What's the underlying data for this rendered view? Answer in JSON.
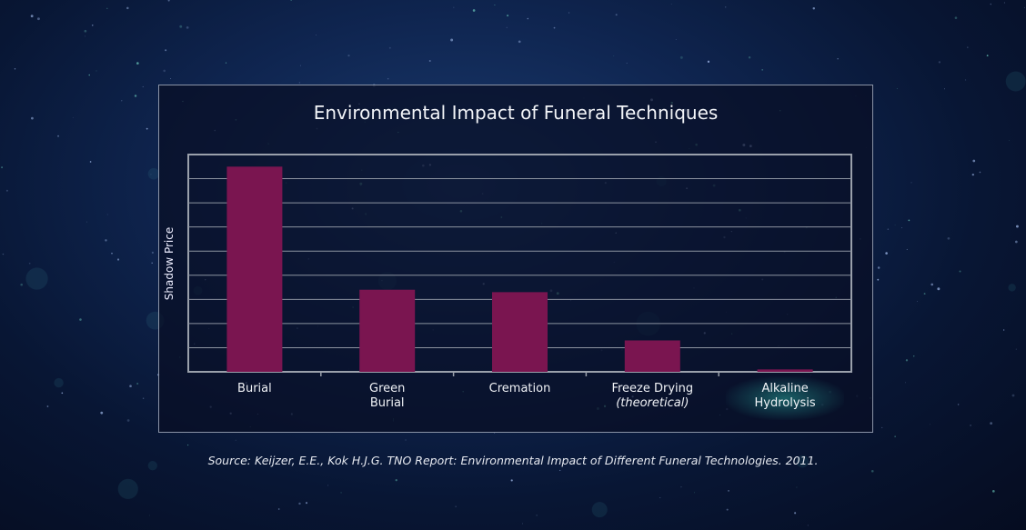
{
  "chart_data": {
    "type": "bar",
    "title": "Environmental Impact of Funeral Techniques",
    "xlabel": "",
    "ylabel": "Shadow Price",
    "categories": [
      {
        "label": "Burial",
        "sub": ""
      },
      {
        "label": "Green Burial",
        "sub": ""
      },
      {
        "label": "Cremation",
        "sub": ""
      },
      {
        "label": "Freeze Drying",
        "sub": "(theoretical)"
      },
      {
        "label": "Alkaline Hydrolysis",
        "sub": ""
      }
    ],
    "values": [
      8.5,
      3.4,
      3.3,
      1.3,
      0.1
    ],
    "ylim": [
      0,
      9
    ],
    "y_tick_labels": false,
    "grid": true,
    "bar_color": "#7a1550",
    "highlight_category": "Alkaline Hydrolysis",
    "highlight_color": "#2aa096"
  },
  "source": "Source:  Keijzer, E.E., Kok H.J.G.  TNO Report:  Environmental Impact of Different Funeral Technologies.  2011."
}
